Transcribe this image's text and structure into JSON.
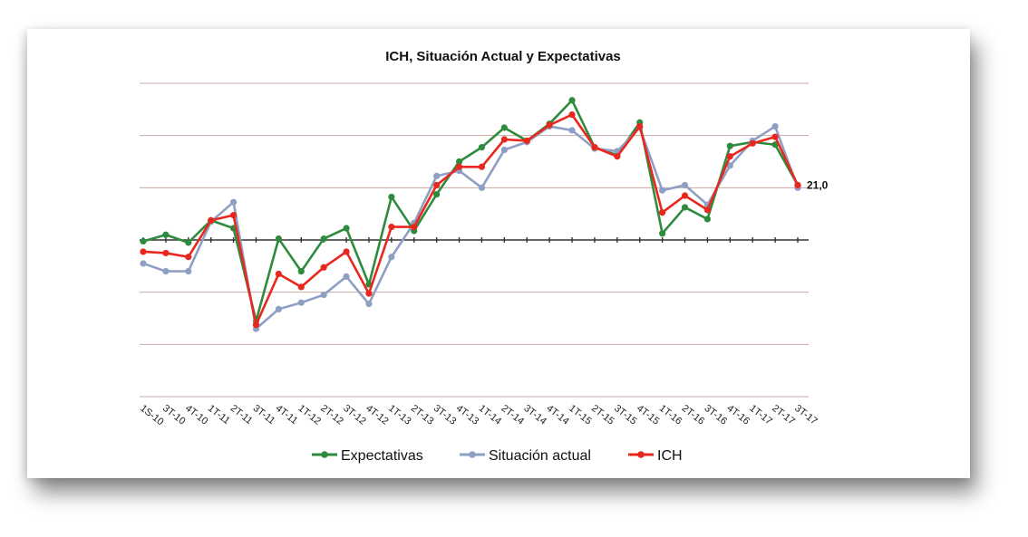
{
  "chart_data": {
    "type": "line",
    "title": "ICH, Situación Actual y Expectativas",
    "xlabel": "",
    "ylabel": "",
    "ylim": [
      -60,
      60
    ],
    "grid": true,
    "legend_position": "bottom",
    "categories": [
      "1S-10",
      "3T-10",
      "4T-10",
      "1T-11",
      "2T-11",
      "3T-11",
      "4T-11",
      "1T-12",
      "2T-12",
      "3T-12",
      "4T-12",
      "1T-13",
      "2T-13",
      "3T-13",
      "4T-13",
      "1T-14",
      "2T-14",
      "3T-14",
      "4T-14",
      "1T-15",
      "2T-15",
      "3T-15",
      "4T-15",
      "1T-16",
      "2T-16",
      "3T-16",
      "4T-16",
      "1T-17",
      "2T-17",
      "3T-17"
    ],
    "series": [
      {
        "name": "Expectativas",
        "color": "#2e8b3e",
        "values": [
          -0.5,
          2,
          -1,
          7.5,
          4.5,
          -31,
          0.5,
          -12,
          0.5,
          4.5,
          -17,
          16.5,
          3.5,
          17.5,
          30,
          35.5,
          43,
          38,
          44.5,
          53.5,
          35.5,
          32.5,
          45,
          2.5,
          12.5,
          8,
          36,
          37.5,
          36.5,
          21
        ]
      },
      {
        "name": "Situación actual",
        "color": "#8f9fc4",
        "values": [
          -9,
          -12,
          -12,
          7,
          14.5,
          -34,
          -26.5,
          -24,
          -21,
          -14,
          -24.5,
          -6.5,
          6.5,
          24.5,
          26.5,
          20,
          34.5,
          37.5,
          43.5,
          42,
          35,
          34,
          43,
          19,
          21,
          13.5,
          28.5,
          38,
          43.5,
          20
        ]
      },
      {
        "name": "ICH",
        "color": "#e8281e",
        "values": [
          -4.5,
          -5,
          -6.5,
          7.5,
          9.5,
          -32.5,
          -13,
          -18,
          -10.5,
          -4.5,
          -20.5,
          5,
          5,
          21,
          28,
          28,
          38.5,
          38,
          44,
          48,
          35.5,
          32,
          43.5,
          10.5,
          17,
          11.5,
          32,
          37,
          39.5,
          21
        ]
      }
    ],
    "annotation": "21,0"
  }
}
